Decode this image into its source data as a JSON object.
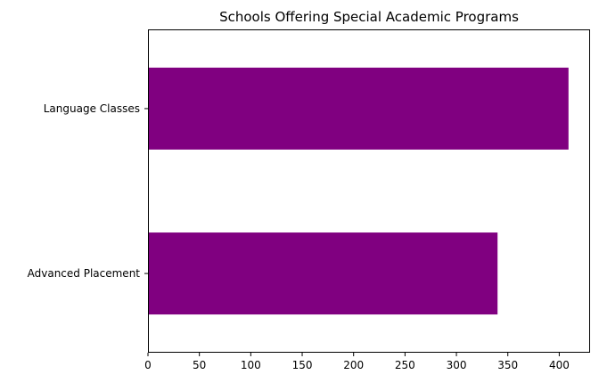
{
  "chart_data": {
    "type": "bar",
    "orientation": "horizontal",
    "title": "Schools Offering Special Academic Programs",
    "xlabel": "",
    "ylabel": "",
    "categories": [
      "Advanced Placement",
      "Language Classes"
    ],
    "values": [
      340,
      409
    ],
    "xlim": [
      0,
      430
    ],
    "xticks": [
      0,
      50,
      100,
      150,
      200,
      250,
      300,
      350,
      400
    ],
    "grid": false,
    "legend": "none",
    "bar_color": "#800080"
  }
}
